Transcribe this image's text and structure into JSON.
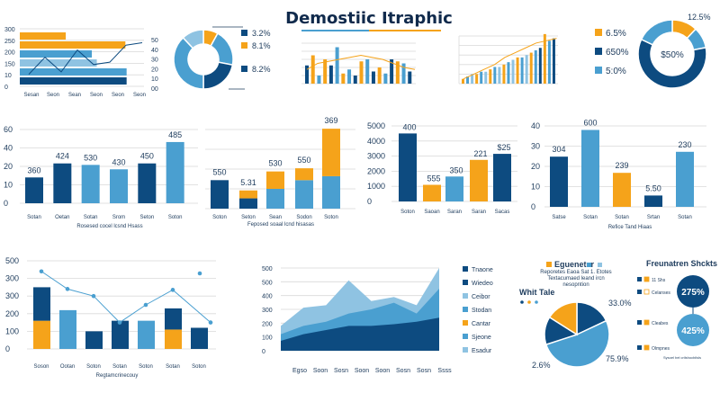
{
  "header": {
    "title": "Demostiic Itraphic"
  },
  "colors": {
    "navy": "#0d4b80",
    "blue": "#4a9fd0",
    "light": "#8fc3e2",
    "orange": "#f5a31a",
    "grid": "#d9d9d9",
    "text": "#1d3b5c"
  },
  "chart_data": [
    {
      "id": "c1",
      "type": "bar",
      "title": "",
      "left_ticks": [
        "300",
        "250",
        "200",
        "150",
        "10",
        "0"
      ],
      "right_ticks": [
        "50",
        "40",
        "30",
        "20",
        "10",
        "00"
      ],
      "categories": [
        "Sesan",
        "Seon",
        "Sean",
        "Seon",
        "Seon",
        "Seon"
      ],
      "bars": [
        {
          "color": "orange",
          "value": 0.37
        },
        {
          "color": "orange",
          "value": 0.85
        },
        {
          "color": "blue",
          "value": 0.58
        },
        {
          "color": "light",
          "value": 0.62
        },
        {
          "color": "blue",
          "value": 0.86
        },
        {
          "color": "navy",
          "value": 0.86
        }
      ],
      "line": [
        0.1,
        0.45,
        0.15,
        0.6,
        0.3,
        0.35,
        0.7,
        0.75
      ]
    },
    {
      "id": "c2",
      "type": "pie",
      "slices": [
        {
          "color": "orange",
          "value": 8
        },
        {
          "color": "blue",
          "value": 20
        },
        {
          "color": "navy",
          "value": 22
        },
        {
          "color": "blue",
          "value": 38
        },
        {
          "color": "light",
          "value": 12
        }
      ],
      "labels": [
        "3.2%",
        "8.1%",
        "8.2%"
      ],
      "label_colors": [
        "navy",
        "orange",
        "navy"
      ]
    },
    {
      "id": "c3",
      "type": "bar",
      "values": [
        0.45,
        0.7,
        0.2,
        0.6,
        0.45,
        0.9,
        0.25,
        0.35,
        0.2,
        0.55,
        0.6,
        0.3,
        0.4,
        0.25,
        0.6,
        0.55,
        0.5,
        0.3
      ],
      "colors": [
        "navy",
        "orange",
        "blue",
        "orange",
        "navy",
        "blue",
        "orange",
        "blue",
        "navy",
        "orange",
        "blue",
        "navy",
        "orange",
        "blue",
        "navy",
        "orange",
        "blue",
        "navy"
      ],
      "line": [
        0.35,
        0.5,
        0.55,
        0.6,
        0.65,
        0.7,
        0.65,
        0.6,
        0.5,
        0.4,
        0.35
      ]
    },
    {
      "id": "c4",
      "type": "bar",
      "values": [
        0.1,
        0.15,
        0.2,
        0.2,
        0.25,
        0.25,
        0.3,
        0.35,
        0.35,
        0.4,
        0.45,
        0.5,
        0.55,
        0.55,
        0.6,
        0.65,
        0.7,
        0.75,
        0.8,
        0.9,
        0.95
      ],
      "colors": [
        "orange",
        "blue",
        "light",
        "orange",
        "blue",
        "light",
        "orange",
        "blue",
        "light",
        "orange",
        "blue",
        "light",
        "orange",
        "blue",
        "light",
        "orange",
        "blue",
        "navy",
        "orange",
        "blue",
        "navy"
      ],
      "line": [
        0.1,
        0.2,
        0.3,
        0.4,
        0.55,
        0.65,
        0.75,
        0.85,
        0.9,
        0.95
      ]
    },
    {
      "id": "c5",
      "type": "pie",
      "slices": [
        {
          "color": "orange",
          "value": 12
        },
        {
          "color": "blue",
          "value": 10
        },
        {
          "color": "navy",
          "value": 60
        },
        {
          "color": "blue",
          "value": 18
        }
      ],
      "center": "$50%",
      "top_label": "12.5%",
      "legend": [
        {
          "color": "orange",
          "label": "6.5%"
        },
        {
          "color": "navy",
          "label": "650%"
        },
        {
          "color": "blue",
          "label": "5:0%"
        }
      ]
    },
    {
      "id": "c6",
      "type": "bar",
      "yticks": [
        "60",
        "40",
        "20",
        "10",
        "0"
      ],
      "categories": [
        "Sotan",
        "Oetan",
        "Sotan",
        "Srom",
        "Seton",
        "Soton"
      ],
      "values": [
        360,
        424,
        530,
        430,
        450,
        485
      ],
      "heights": [
        0.35,
        0.54,
        0.52,
        0.46,
        0.54,
        0.83
      ],
      "colors": [
        "navy",
        "navy",
        "blue",
        "blue",
        "navy",
        "blue"
      ],
      "caption": "Rosesed cocel lcsnd Hsass"
    },
    {
      "id": "c7",
      "type": "bar",
      "labels": [
        "550",
        "5.31",
        "530",
        "550",
        "369"
      ],
      "categories": [
        "Soton",
        "Seton",
        "Sean",
        "Sodon",
        "Soton"
      ],
      "stack_bottom": [
        0.36,
        0.13,
        0.25,
        0.36,
        0.41
      ],
      "stack_top": [
        0,
        0.1,
        0.22,
        0.15,
        0.6
      ],
      "bottom_colors": [
        "navy",
        "navy",
        "blue",
        "blue",
        "blue"
      ],
      "caption": "Feposed soaal lcnd hisasas"
    },
    {
      "id": "c8",
      "type": "bar",
      "yticks": [
        "5000",
        "4000",
        "3000",
        "2000",
        "1000",
        "0"
      ],
      "categories": [
        "Soton",
        "Saoan",
        "Saran",
        "Saran",
        "Sacas"
      ],
      "values": [
        "400",
        "555",
        "350",
        "221",
        "$25"
      ],
      "heights": [
        0.9,
        0.22,
        0.33,
        0.55,
        0.63
      ],
      "colors": [
        "navy",
        "orange",
        "blue",
        "orange",
        "navy"
      ]
    },
    {
      "id": "c9",
      "type": "bar",
      "yticks": [
        "40",
        "30",
        "20",
        "10",
        "0"
      ],
      "categories": [
        "Satse",
        "Sotan",
        "Sotan",
        "Srtan",
        "Sotan"
      ],
      "values": [
        "304",
        "600",
        "239",
        "5.50",
        "230"
      ],
      "heights": [
        0.62,
        0.95,
        0.42,
        0.14,
        0.68
      ],
      "colors": [
        "navy",
        "blue",
        "orange",
        "navy",
        "blue"
      ],
      "caption": "Refice Tand Hiaas"
    },
    {
      "id": "c10",
      "type": "bar",
      "yticks": [
        "500",
        "300",
        "300",
        "200",
        "100",
        "0"
      ],
      "categories": [
        "Soson",
        "Ootan",
        "Soton",
        "Sotan",
        "Soton",
        "Sotan",
        "Soton"
      ],
      "stack_bottom": [
        0.32,
        0.44,
        0.2,
        0.32,
        0.32,
        0.22,
        0.24
      ],
      "stack_top": [
        0.38,
        0,
        0,
        0,
        0,
        0.24,
        0
      ],
      "bottom_colors": [
        "orange",
        "blue",
        "navy",
        "navy",
        "blue",
        "orange",
        "navy"
      ],
      "top_colors": [
        "navy",
        "navy",
        "navy",
        "navy",
        "navy",
        "navy",
        "navy"
      ],
      "line": [
        0.88,
        0.68,
        0.6,
        0.3,
        0.5,
        0.67,
        0.3
      ],
      "caption": "Regtamcrinecouy"
    },
    {
      "id": "c11",
      "type": "area",
      "yticks": [
        "500",
        "500",
        "400",
        "300",
        "200",
        "100",
        "0"
      ],
      "categories": [
        "Egso",
        "Soon",
        "Sosn",
        "Soon",
        "Soon",
        "Sosn",
        "Sosn",
        "Ssss"
      ],
      "legend": [
        "Tnaone",
        "Wiedeo",
        "Ceibor",
        "Stodan",
        "Cantar",
        "Sjeone",
        "Esadur"
      ],
      "legend_colors": [
        "navy",
        "navy",
        "light",
        "blue",
        "orange",
        "blue",
        "light"
      ],
      "layers": [
        {
          "color": "light",
          "values": [
            0.3,
            0.52,
            0.55,
            0.85,
            0.6,
            0.65,
            0.55,
            1.0
          ]
        },
        {
          "color": "blue",
          "values": [
            0.2,
            0.3,
            0.35,
            0.45,
            0.5,
            0.58,
            0.45,
            0.75
          ]
        },
        {
          "color": "navy",
          "values": [
            0.12,
            0.2,
            0.25,
            0.3,
            0.3,
            0.32,
            0.35,
            0.4
          ]
        }
      ]
    },
    {
      "id": "c12",
      "type": "pie",
      "heading": "Egueneter",
      "lines": [
        "Reporetes Eaoa Sat 1. Etotes",
        "Textacumaed leand ircn",
        "nesopntion"
      ],
      "side_label": "Whit Tale",
      "labels": [
        "33.0%",
        "2.6%",
        "75.9%"
      ],
      "slices": [
        {
          "color": "navy",
          "value": 18
        },
        {
          "color": "blue",
          "value": 52
        },
        {
          "color": "navy",
          "value": 14
        },
        {
          "color": "orange",
          "value": 16
        }
      ]
    },
    {
      "id": "c13",
      "type": "pie",
      "heading": "Freunatren Shckts",
      "rows": [
        {
          "label": "11 Shs"
        },
        {
          "label": "Celanses"
        },
        {
          "label": "Cleabes"
        },
        {
          "label": "Olmpnes"
        }
      ],
      "bubbles": [
        {
          "color": "navy",
          "label": "275%"
        },
        {
          "color": "blue",
          "label": "425%"
        }
      ],
      "footnote": "Sysoel bel crilshocbilsls"
    }
  ]
}
